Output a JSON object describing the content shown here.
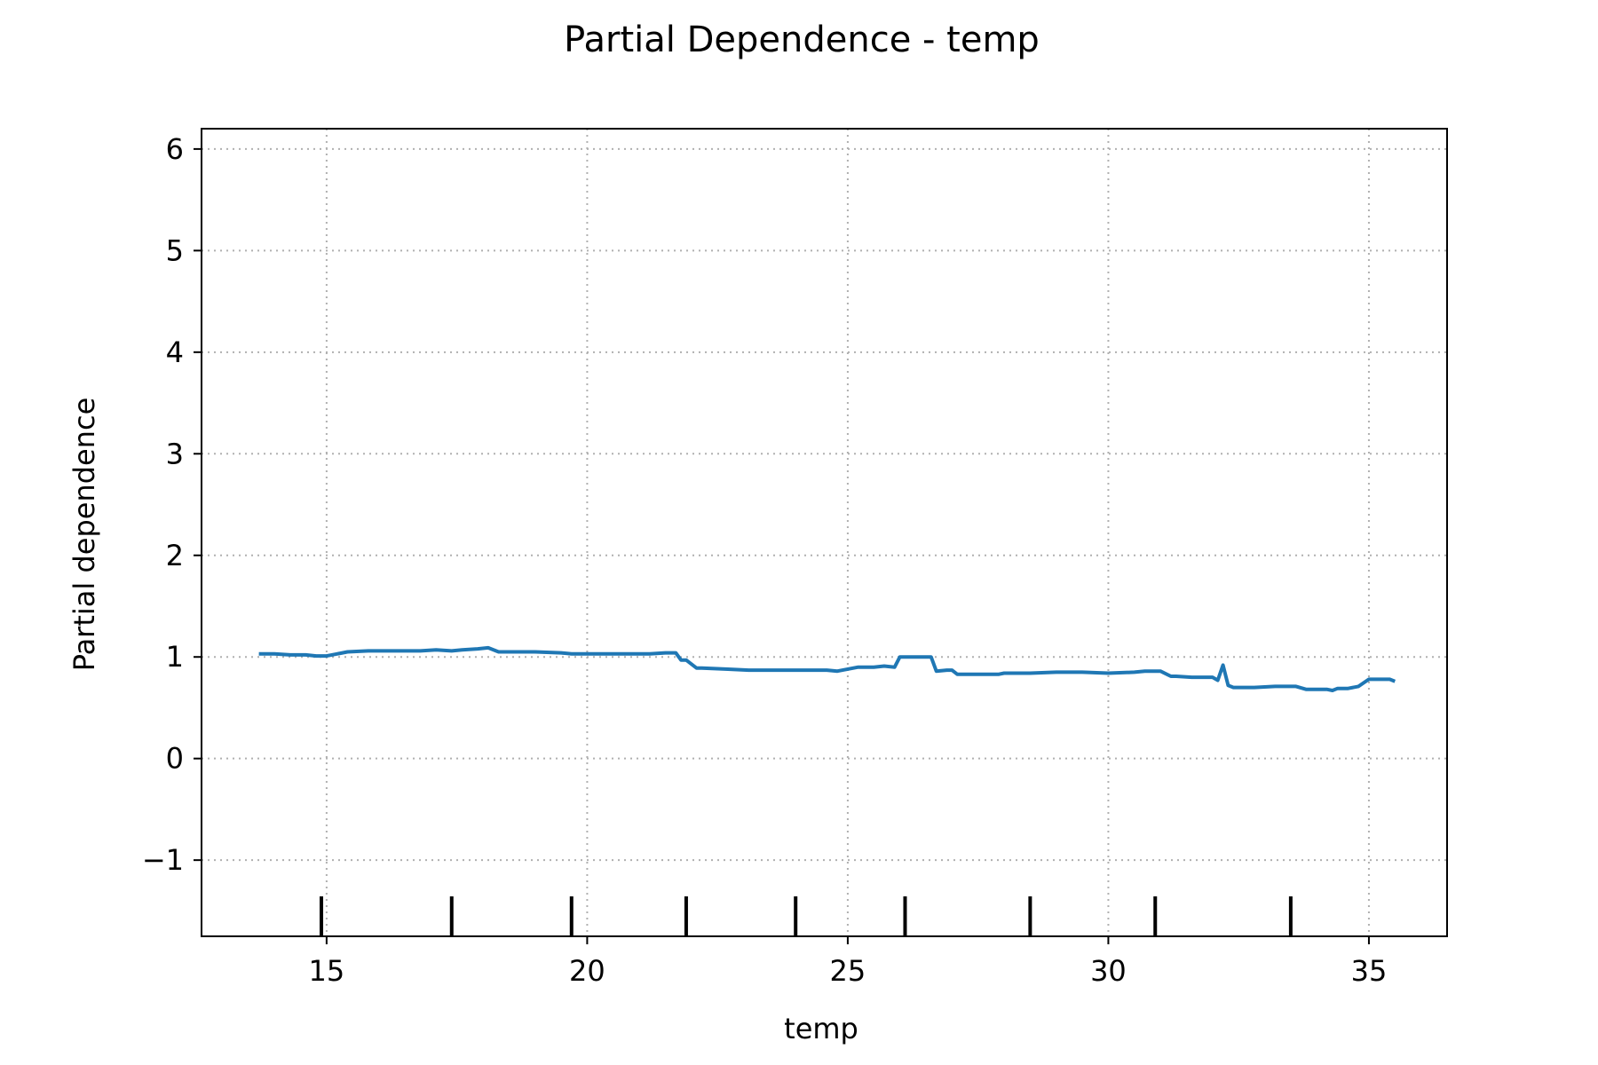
{
  "chart_data": {
    "type": "line",
    "title": "Partial Dependence - temp",
    "xlabel": "temp",
    "ylabel": "Partial dependence",
    "xlim": [
      12.6,
      36.5
    ],
    "ylim": [
      -1.75,
      6.2
    ],
    "x_ticks": [
      15,
      20,
      25,
      30,
      35
    ],
    "x_tick_labels": [
      "15",
      "20",
      "25",
      "30",
      "35"
    ],
    "y_ticks": [
      -1,
      0,
      1,
      2,
      3,
      4,
      5,
      6
    ],
    "y_tick_labels": [
      "−1",
      "0",
      "1",
      "2",
      "3",
      "4",
      "5",
      "6"
    ],
    "grid": true,
    "grid_style": "dotted",
    "line_color": "#1f77b4",
    "rug_color": "#000000",
    "rug_x": [
      14.9,
      17.4,
      19.7,
      21.9,
      24.0,
      26.1,
      28.5,
      30.9,
      33.5
    ],
    "series": [
      {
        "x": [
          13.7,
          14.0,
          14.3,
          14.6,
          14.8,
          15.0,
          15.2,
          15.4,
          15.8,
          16.3,
          16.8,
          17.1,
          17.4,
          17.6,
          17.9,
          18.1,
          18.3,
          18.6,
          19.0,
          19.5,
          19.7,
          20.2,
          20.7,
          21.2,
          21.5,
          21.7,
          21.8,
          21.9,
          22.1,
          22.2,
          22.7,
          23.1,
          23.4,
          23.8,
          24.1,
          24.4,
          24.6,
          24.8,
          25.2,
          25.5,
          25.7,
          25.9,
          26.0,
          26.3,
          26.6,
          26.7,
          26.9,
          27.0,
          27.1,
          27.5,
          27.9,
          28.0,
          28.5,
          29.0,
          29.5,
          30.0,
          30.5,
          30.7,
          31.0,
          31.2,
          31.3,
          31.6,
          31.8,
          32.0,
          32.1,
          32.2,
          32.3,
          32.4,
          32.5,
          32.8,
          33.2,
          33.6,
          33.8,
          34.1,
          34.2,
          34.3,
          34.4,
          34.6,
          34.8,
          35.0,
          35.2,
          35.4,
          35.5
        ],
        "y": [
          1.03,
          1.03,
          1.02,
          1.02,
          1.01,
          1.01,
          1.03,
          1.05,
          1.06,
          1.06,
          1.06,
          1.07,
          1.06,
          1.07,
          1.08,
          1.09,
          1.05,
          1.05,
          1.05,
          1.04,
          1.03,
          1.03,
          1.03,
          1.03,
          1.04,
          1.04,
          0.97,
          0.97,
          0.89,
          0.89,
          0.88,
          0.87,
          0.87,
          0.87,
          0.87,
          0.87,
          0.87,
          0.86,
          0.9,
          0.9,
          0.91,
          0.9,
          1.0,
          1.0,
          1.0,
          0.86,
          0.87,
          0.87,
          0.83,
          0.83,
          0.83,
          0.84,
          0.84,
          0.85,
          0.85,
          0.84,
          0.85,
          0.86,
          0.86,
          0.81,
          0.81,
          0.8,
          0.8,
          0.8,
          0.77,
          0.92,
          0.72,
          0.7,
          0.7,
          0.7,
          0.71,
          0.71,
          0.68,
          0.68,
          0.68,
          0.67,
          0.69,
          0.69,
          0.71,
          0.78,
          0.78,
          0.78,
          0.76
        ]
      }
    ]
  }
}
